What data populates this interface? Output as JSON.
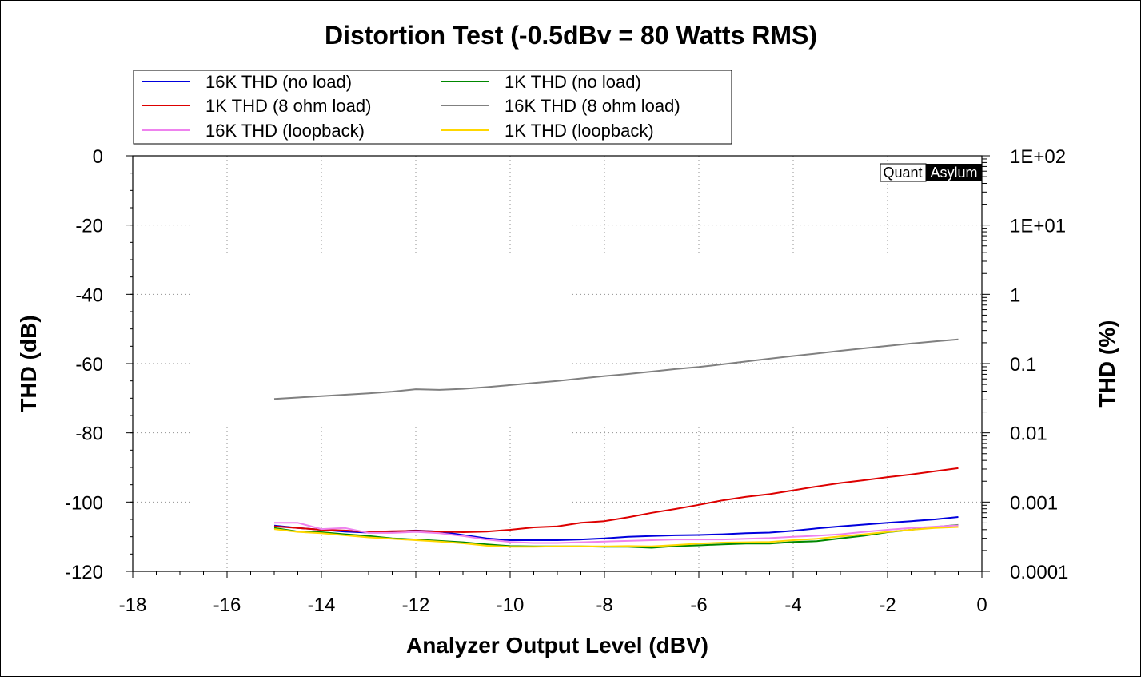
{
  "chart_data": {
    "type": "line",
    "title": "Distortion Test (-0.5dBv = 80 Watts RMS)",
    "xlabel": "Analyzer Output Level (dBV)",
    "ylabel": "THD (dB)",
    "y2label": "THD (%)",
    "watermark": {
      "left": "Quant",
      "right": "Asylum"
    },
    "xlim": [
      -18,
      0
    ],
    "ylim": [
      -120,
      0
    ],
    "x_ticks": [
      "-18",
      "-16",
      "-14",
      "-12",
      "-10",
      "-8",
      "-6",
      "-4",
      "-2",
      "0"
    ],
    "y_ticks": [
      "0",
      "-20",
      "-40",
      "-60",
      "-80",
      "-100",
      "-120"
    ],
    "y2_ticks": [
      "1E+02",
      "1E+01",
      "1",
      "0.1",
      "0.01",
      "0.001",
      "0.0001"
    ],
    "y2_scale": "log",
    "grid": true,
    "legend_position": "top",
    "series": [
      {
        "name": "16K THD (no load)",
        "color": "#0000dd",
        "x": [
          -15,
          -14.5,
          -14,
          -13.5,
          -13,
          -12.5,
          -12,
          -11.5,
          -11,
          -10.5,
          -10,
          -9.5,
          -9,
          -8.5,
          -8,
          -7.5,
          -7,
          -6.5,
          -6,
          -5.5,
          -5,
          -4.5,
          -4,
          -3.5,
          -3,
          -2.5,
          -2,
          -1.5,
          -1,
          -0.5
        ],
        "y": [
          -106.8,
          -107.5,
          -108,
          -108.5,
          -108.8,
          -108.5,
          -108.2,
          -108.5,
          -109.5,
          -110.5,
          -111,
          -111,
          -111,
          -110.8,
          -110.5,
          -110,
          -109.8,
          -109.6,
          -109.5,
          -109.3,
          -109,
          -108.8,
          -108.3,
          -107.6,
          -107,
          -106.5,
          -106,
          -105.5,
          -105,
          -104.3
        ]
      },
      {
        "name": "1K THD (no load)",
        "color": "#008800",
        "x": [
          -15,
          -14.5,
          -14,
          -13.5,
          -13,
          -12.5,
          -12,
          -11.5,
          -11,
          -10.5,
          -10,
          -9.5,
          -9,
          -8.5,
          -8,
          -7.5,
          -7,
          -6.5,
          -6,
          -5.5,
          -5,
          -4.5,
          -4,
          -3.5,
          -3,
          -2.5,
          -2,
          -1.5,
          -1,
          -0.5
        ],
        "y": [
          -107.5,
          -108.5,
          -108.7,
          -109.3,
          -109.8,
          -110.5,
          -110.8,
          -111.2,
          -111.6,
          -112.2,
          -112.7,
          -112.8,
          -112.8,
          -112.8,
          -112.9,
          -112.9,
          -113.2,
          -112.7,
          -112.5,
          -112.2,
          -112,
          -112,
          -111.5,
          -111.3,
          -110.5,
          -109.7,
          -108.7,
          -108,
          -107.2,
          -106.6
        ]
      },
      {
        "name": "1K THD (8 ohm load)",
        "color": "#dd0000",
        "x": [
          -15,
          -14.5,
          -14,
          -13.5,
          -13,
          -12.5,
          -12,
          -11.5,
          -11,
          -10.5,
          -10,
          -9.5,
          -9,
          -8.5,
          -8,
          -7.5,
          -7,
          -6.5,
          -6,
          -5.5,
          -5,
          -4.5,
          -4,
          -3.5,
          -3,
          -2.5,
          -2,
          -1.5,
          -1,
          -0.5
        ],
        "y": [
          -107,
          -107.5,
          -108,
          -108.2,
          -108.6,
          -108.4,
          -108.3,
          -108.5,
          -108.7,
          -108.5,
          -108,
          -107.3,
          -107,
          -106,
          -105.5,
          -104.4,
          -103.1,
          -102,
          -100.8,
          -99.5,
          -98.5,
          -97.7,
          -96.6,
          -95.5,
          -94.5,
          -93.7,
          -92.8,
          -92,
          -91.1,
          -90.2
        ]
      },
      {
        "name": "16K THD (8 ohm load)",
        "color": "#808080",
        "x": [
          -15,
          -14.5,
          -14,
          -13.5,
          -13,
          -12.5,
          -12,
          -11.5,
          -11,
          -10.5,
          -10,
          -9.5,
          -9,
          -8.5,
          -8,
          -7.5,
          -7,
          -6.5,
          -6,
          -5.5,
          -5,
          -4.5,
          -4,
          -3.5,
          -3,
          -2.5,
          -2,
          -1.5,
          -1,
          -0.5
        ],
        "y": [
          -70.2,
          -69.8,
          -69.4,
          -69,
          -68.6,
          -68.1,
          -67.4,
          -67.6,
          -67.3,
          -66.8,
          -66.2,
          -65.6,
          -65,
          -64.3,
          -63.6,
          -63,
          -62.3,
          -61.6,
          -61,
          -60.2,
          -59.4,
          -58.6,
          -57.8,
          -57.1,
          -56.3,
          -55.6,
          -54.9,
          -54.2,
          -53.6,
          -53
        ]
      },
      {
        "name": "16K THD (loopback)",
        "color": "#ee82ee",
        "x": [
          -15,
          -14.5,
          -14,
          -13.5,
          -13,
          -12.5,
          -12,
          -11.5,
          -11,
          -10.5,
          -10,
          -9.5,
          -9,
          -8.5,
          -8,
          -7.5,
          -7,
          -6.5,
          -6,
          -5.5,
          -5,
          -4.5,
          -4,
          -3.5,
          -3,
          -2.5,
          -2,
          -1.5,
          -1,
          -0.5
        ],
        "y": [
          -106,
          -106,
          -107.8,
          -107.5,
          -108.9,
          -108.9,
          -108.6,
          -109,
          -109.8,
          -110.8,
          -111.5,
          -111.8,
          -111.8,
          -111.6,
          -111.4,
          -111.2,
          -111,
          -110.8,
          -110.8,
          -110.8,
          -110.6,
          -110.4,
          -110,
          -109.7,
          -109.3,
          -108.6,
          -108,
          -107.5,
          -107.1,
          -106.7
        ]
      },
      {
        "name": "1K THD (loopback)",
        "color": "#ffd700",
        "x": [
          -15,
          -14.5,
          -14,
          -13.5,
          -13,
          -12.5,
          -12,
          -11.5,
          -11,
          -10.5,
          -10,
          -9.5,
          -9,
          -8.5,
          -8,
          -7.5,
          -7,
          -6.5,
          -6,
          -5.5,
          -5,
          -4.5,
          -4,
          -3.5,
          -3,
          -2.5,
          -2,
          -1.5,
          -1,
          -0.5
        ],
        "y": [
          -107.8,
          -108.6,
          -109,
          -109.6,
          -110.2,
          -110.6,
          -111,
          -111.4,
          -111.9,
          -112.6,
          -112.9,
          -112.9,
          -112.8,
          -112.8,
          -112.8,
          -112.7,
          -112.8,
          -112.4,
          -112,
          -111.7,
          -111.6,
          -111.5,
          -111,
          -110.6,
          -109.9,
          -109.3,
          -108.6,
          -108,
          -107.5,
          -107.2
        ]
      }
    ]
  }
}
